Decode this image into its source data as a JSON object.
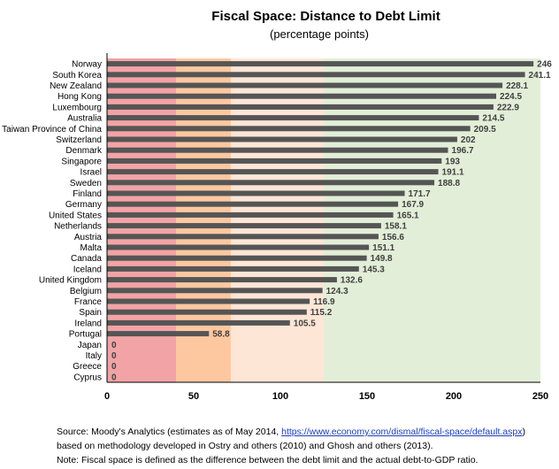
{
  "chart_data": {
    "type": "bar",
    "orientation": "horizontal",
    "title": "Fiscal Space: Distance to Debt Limit",
    "subtitle": "(percentage points)",
    "xlabel": "",
    "ylabel": "",
    "xlim": [
      0,
      250
    ],
    "xticks": [
      "0",
      "50",
      "100",
      "150",
      "200",
      "250"
    ],
    "xtick_values": [
      0,
      50,
      100,
      150,
      200,
      250
    ],
    "bar_color": "#555555",
    "background_bands": [
      {
        "from": 0,
        "to": 39.8,
        "color": "#f2a3a5"
      },
      {
        "from": 39.8,
        "to": 71.4,
        "color": "#fdc8a0"
      },
      {
        "from": 71.4,
        "to": 125,
        "color": "#fee6d6"
      },
      {
        "from": 125,
        "to": 250,
        "color": "#e3eed8"
      }
    ],
    "categories": [
      "Norway",
      "South Korea",
      "New Zealand",
      "Hong Kong",
      "Luxembourg",
      "Australia",
      "Taiwan Province of China",
      "Switzerland",
      "Denmark",
      "Singapore",
      "Israel",
      "Sweden",
      "Finland",
      "Germany",
      "United States",
      "Netherlands",
      "Austria",
      "Malta",
      "Canada",
      "Iceland",
      "United Kingdom",
      "Belgium",
      "France",
      "Spain",
      "Ireland",
      "Portugal",
      "Japan",
      "Italy",
      "Greece",
      "Cyprus"
    ],
    "values": [
      246,
      241.1,
      228.1,
      224.5,
      222.9,
      214.5,
      209.5,
      202,
      196.7,
      193,
      191.1,
      188.8,
      171.7,
      167.9,
      165.1,
      158.1,
      156.6,
      151.1,
      149.8,
      145.3,
      132.6,
      124.3,
      116.9,
      115.2,
      105.5,
      58.8,
      0,
      0,
      0,
      0
    ],
    "value_labels": [
      "246",
      "241.1",
      "228.1",
      "224.5",
      "222.9",
      "214.5",
      "209.5",
      "202",
      "196.7",
      "193",
      "191.1",
      "188.8",
      "171.7",
      "167.9",
      "165.1",
      "158.1",
      "156.6",
      "151.1",
      "149.8",
      "145.3",
      "132.6",
      "124.3",
      "116.9",
      "115.2",
      "105.5",
      "58.8",
      "0",
      "0",
      "0",
      "0"
    ]
  },
  "notes": {
    "source_prefix": "Source: Moody's Analytics (estimates as of May 2014, ",
    "source_link": "https://www.economy.com/dismal/fiscal-space/default.aspx",
    "source_suffix": ")",
    "line2": "based on methodology developed in Ostry and others (2010) and Ghosh and others (2013).",
    "line3": "Note: Fiscal space is defined as the difference between the debt limit and the actual debt-to-GDP ratio."
  }
}
